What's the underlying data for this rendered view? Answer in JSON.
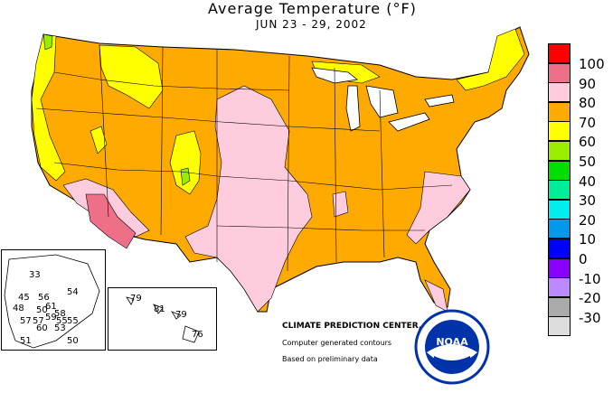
{
  "title": "Average Temperature (°F)",
  "subtitle": "JUN 23 - 29, 2002",
  "legend": [
    {
      "label": "100",
      "color": "#ff0000"
    },
    {
      "label": "90",
      "color": "#ee7088"
    },
    {
      "label": "80",
      "color": "#ffccdd"
    },
    {
      "label": "70",
      "color": "#ffaa00"
    },
    {
      "label": "60",
      "color": "#ffff00"
    },
    {
      "label": "50",
      "color": "#99ee00"
    },
    {
      "label": "40",
      "color": "#00dd00"
    },
    {
      "label": "30",
      "color": "#00ee99"
    },
    {
      "label": "20",
      "color": "#00eeee"
    },
    {
      "label": "10",
      "color": "#0099ee"
    },
    {
      "label": "0",
      "color": "#0000ff"
    },
    {
      "label": "-10",
      "color": "#8800ff"
    },
    {
      "label": "-20",
      "color": "#bb88ff"
    },
    {
      "label": "-30",
      "color": "#aaaaaa"
    },
    {
      "label": "",
      "color": "#dddddd"
    }
  ],
  "credits": {
    "center": "CLIMATE PREDICTION CENTER, NOAA",
    "line1": "Computer generated contours",
    "line2": "Based on preliminary data"
  },
  "logo": {
    "text": "NOAA"
  },
  "alaska": {
    "values": [
      "33",
      "56",
      "45",
      "54",
      "61",
      "58",
      "48",
      "50",
      "59",
      "57",
      "55",
      "57",
      "55",
      "60",
      "53",
      "51",
      "50"
    ]
  },
  "hawaii": {
    "values": [
      "79",
      "81",
      "79",
      "76"
    ]
  }
}
